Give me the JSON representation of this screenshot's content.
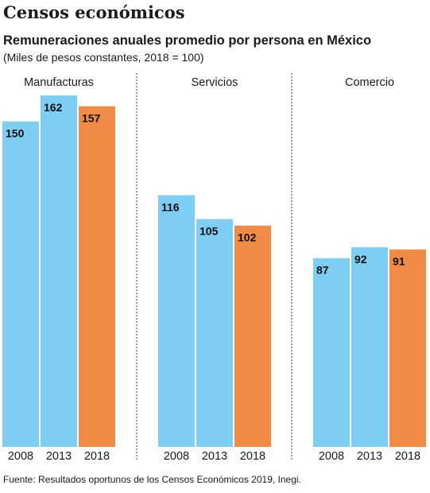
{
  "title": "Censos económicos",
  "subtitle": "Remuneraciones anuales promedio por persona en México",
  "unit_note": "(Miles de pesos constantes, 2018 = 100)",
  "source": "Fuente: Resultados oportunos de los Censos Económicos 2019, Inegi.",
  "colors": {
    "past_year": "#7ecdf2",
    "latest_year": "#f08a45"
  },
  "chart_data": {
    "type": "bar",
    "title": "Remuneraciones anuales promedio por persona en México",
    "ylabel": "Miles de pesos constantes, 2018 = 100",
    "groups": [
      {
        "name": "Manufacturas",
        "categories": [
          "2008",
          "2013",
          "2018"
        ],
        "values": [
          150,
          162,
          157
        ]
      },
      {
        "name": "Servicios",
        "categories": [
          "2008",
          "2013",
          "2018"
        ],
        "values": [
          116,
          105,
          102
        ]
      },
      {
        "name": "Comercio",
        "categories": [
          "2008",
          "2013",
          "2018"
        ],
        "values": [
          87,
          92,
          91
        ]
      }
    ],
    "ylim": [
      0,
      162
    ],
    "grid": false,
    "legend": "none"
  }
}
